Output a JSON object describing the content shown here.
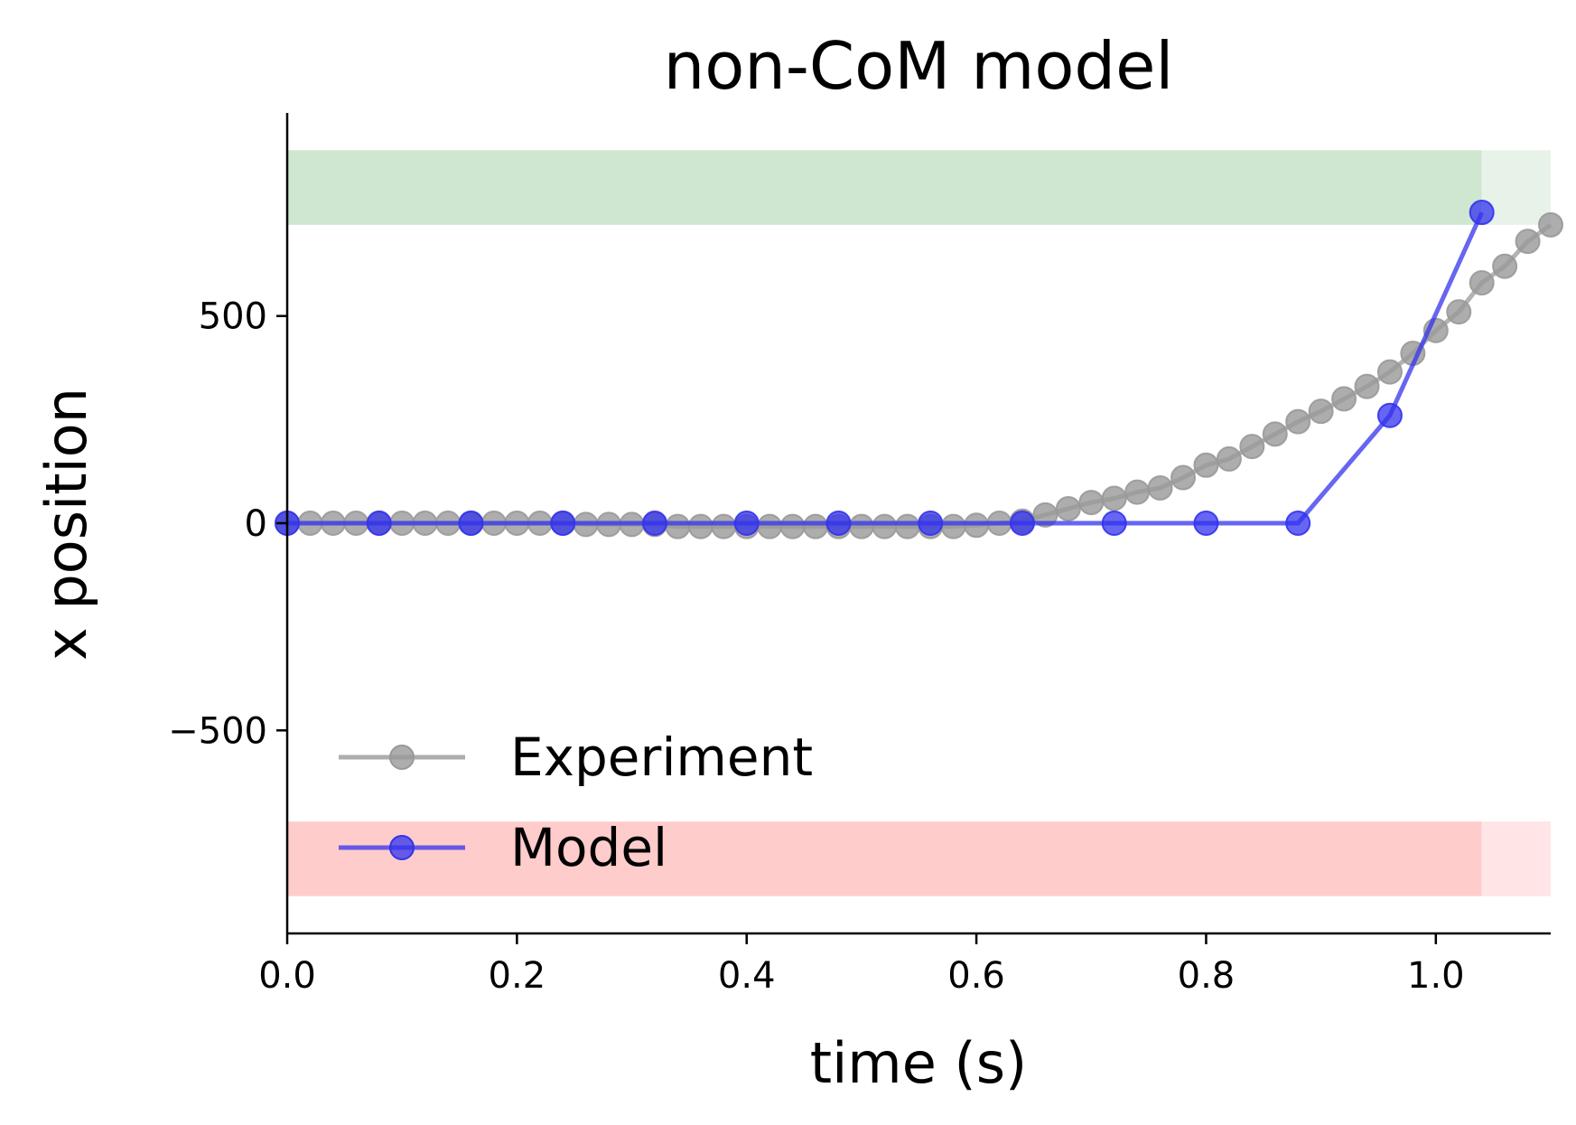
{
  "chart_data": {
    "type": "line",
    "title": "non-CoM model",
    "xlabel": "time (s)",
    "ylabel": "x position",
    "xlim": [
      0,
      1.1
    ],
    "ylim": [
      -990,
      990
    ],
    "xticks": [
      0.0,
      0.2,
      0.4,
      0.6,
      0.8,
      1.0
    ],
    "xtick_labels": [
      "0.0",
      "0.2",
      "0.4",
      "0.6",
      "0.8",
      "1.0"
    ],
    "yticks": [
      -500,
      0,
      500
    ],
    "ytick_labels": [
      "−500",
      "0",
      "500"
    ],
    "grid": false,
    "legend_position": "lower-left",
    "bands": [
      {
        "y0": 720,
        "y1": 900,
        "x0": 0,
        "x1": 1.04,
        "color": "#cfe6d0",
        "faded_color": "#e7f2e8"
      },
      {
        "y0": -900,
        "y1": -720,
        "x0": 0,
        "x1": 1.04,
        "color": "#ffcccc",
        "faded_color": "#ffe5e5"
      }
    ],
    "series": [
      {
        "name": "Experiment",
        "color": "#999999",
        "x": [
          0.0,
          0.02,
          0.04,
          0.06,
          0.08,
          0.1,
          0.12,
          0.14,
          0.16,
          0.18,
          0.2,
          0.22,
          0.24,
          0.26,
          0.28,
          0.3,
          0.32,
          0.34,
          0.36,
          0.38,
          0.4,
          0.42,
          0.44,
          0.46,
          0.48,
          0.5,
          0.52,
          0.54,
          0.56,
          0.58,
          0.6,
          0.62,
          0.64,
          0.66,
          0.68,
          0.7,
          0.72,
          0.74,
          0.76,
          0.78,
          0.8,
          0.82,
          0.84,
          0.86,
          0.88,
          0.9,
          0.92,
          0.94,
          0.96,
          0.98,
          1.0,
          1.02,
          1.04,
          1.06,
          1.08,
          1.1
        ],
        "y": [
          0,
          0,
          0,
          0,
          0,
          0,
          0,
          0,
          0,
          0,
          0,
          0,
          0,
          -3,
          -3,
          -3,
          -3,
          -8,
          -8,
          -8,
          -8,
          -8,
          -8,
          -8,
          -8,
          -8,
          -8,
          -8,
          -8,
          -8,
          -5,
          0,
          5,
          20,
          35,
          50,
          60,
          75,
          85,
          110,
          140,
          155,
          185,
          215,
          245,
          270,
          300,
          330,
          365,
          410,
          465,
          510,
          580,
          620,
          680,
          720
        ]
      },
      {
        "name": "Model",
        "color": "#3333ee",
        "x": [
          0.0,
          0.08,
          0.16,
          0.24,
          0.32,
          0.4,
          0.48,
          0.56,
          0.64,
          0.72,
          0.8,
          0.88,
          0.96,
          1.04
        ],
        "y": [
          0,
          0,
          0,
          0,
          0,
          0,
          0,
          0,
          0,
          0,
          0,
          0,
          260,
          750
        ]
      }
    ]
  }
}
